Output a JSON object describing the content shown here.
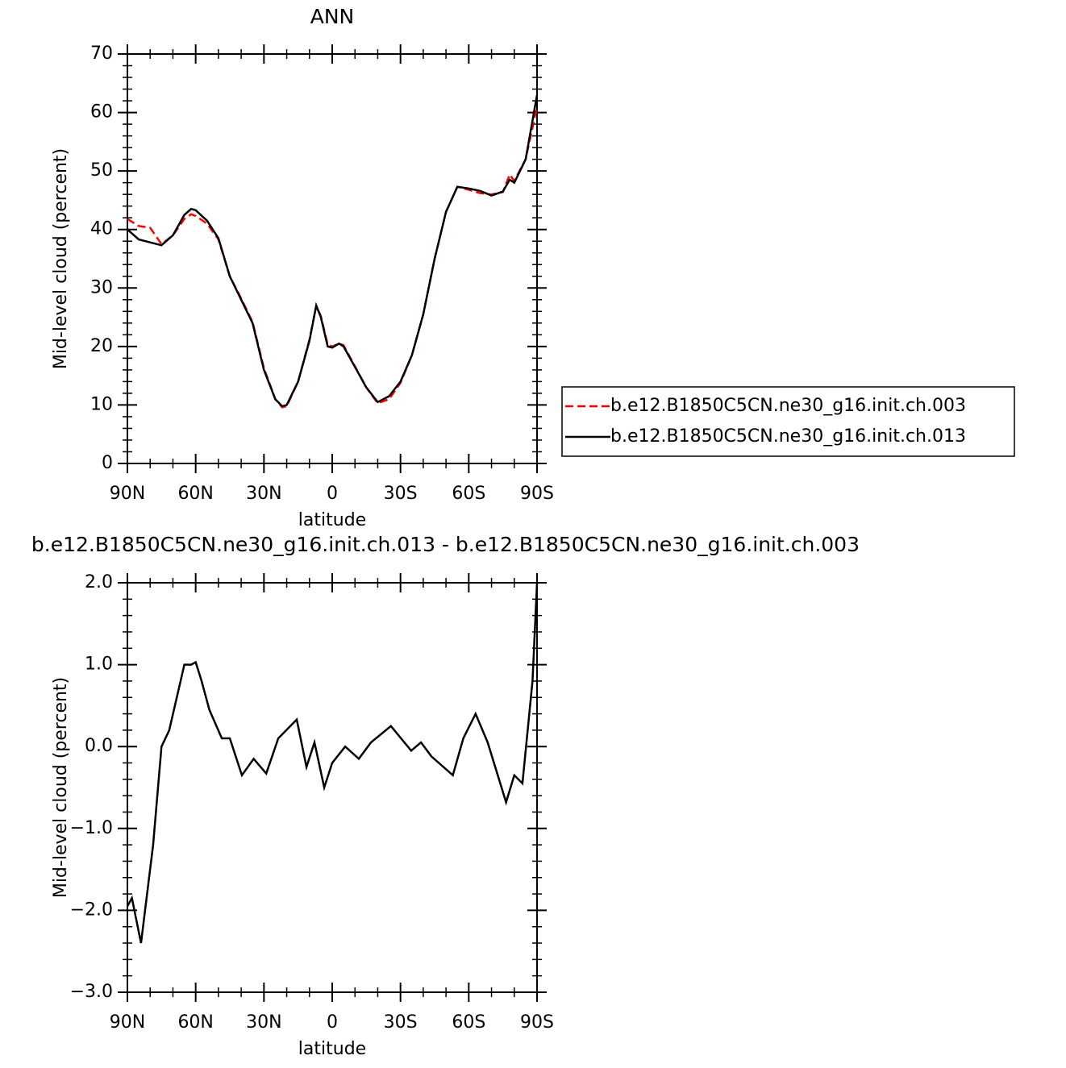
{
  "chart_data": [
    {
      "type": "line",
      "title": "ANN",
      "xlabel": "latitude",
      "ylabel": "Mid-level cloud (percent)",
      "xlim": [
        90,
        -90
      ],
      "ylim": [
        0,
        70
      ],
      "xticks": [
        {
          "value": 90,
          "label": "90N"
        },
        {
          "value": 60,
          "label": "60N"
        },
        {
          "value": 30,
          "label": "30N"
        },
        0,
        {
          "value": -30,
          "label": "30S"
        },
        {
          "value": -60,
          "label": "60S"
        },
        {
          "value": -90,
          "label": "90S"
        }
      ],
      "yticks": [
        0,
        10,
        20,
        30,
        40,
        50,
        60,
        70
      ],
      "legend": "right",
      "x": [
        90,
        85,
        80,
        75,
        70,
        65,
        62,
        60,
        55,
        50,
        45,
        40,
        35,
        30,
        25,
        22,
        20,
        15,
        10,
        7,
        5,
        2,
        0,
        -3,
        -5,
        -10,
        -15,
        -20,
        -25,
        -30,
        -35,
        -40,
        -45,
        -50,
        -55,
        -60,
        -65,
        -70,
        -75,
        -78,
        -80,
        -85,
        -90
      ],
      "series": [
        {
          "name": "b.e12.B1850C5CN.ne30_g16.init.ch.003",
          "color": "#ff0000",
          "dashed": true,
          "values": [
            41.8,
            40.6,
            40.3,
            37.5,
            39,
            41.8,
            42.6,
            42.3,
            41,
            38.3,
            32,
            28.2,
            24.2,
            16.3,
            11,
            9.6,
            9.8,
            14,
            21.2,
            27,
            25.2,
            20.3,
            20,
            20.5,
            20.2,
            16.6,
            13,
            10.3,
            11,
            13.8,
            18.5,
            25.5,
            35,
            43,
            47.3,
            46.8,
            46.2,
            46,
            46.4,
            49.4,
            48.3,
            52,
            61
          ]
        },
        {
          "name": "b.e12.B1850C5CN.ne30_g16.init.ch.013",
          "color": "#000000",
          "dashed": false,
          "values": [
            40,
            38.3,
            37.8,
            37.3,
            39,
            42.5,
            43.5,
            43.3,
            41.5,
            38.5,
            32,
            28,
            24,
            16,
            11,
            9.8,
            10,
            14,
            21,
            27,
            25,
            20,
            19.8,
            20.5,
            20,
            16.5,
            13,
            10.5,
            11.5,
            14,
            18.5,
            25.5,
            35,
            43,
            47.3,
            47,
            46.6,
            45.8,
            46.5,
            48.5,
            48,
            52,
            63
          ]
        }
      ]
    },
    {
      "type": "line",
      "title": "b.e12.B1850C5CN.ne30_g16.init.ch.013 - b.e12.B1850C5CN.ne30_g16.init.ch.003",
      "xlabel": "latitude",
      "ylabel": "Mid-level cloud (percent)",
      "xlim": [
        90,
        -90
      ],
      "ylim": [
        -3,
        2
      ],
      "xticks": [
        {
          "value": 90,
          "label": "90N"
        },
        {
          "value": 60,
          "label": "60N"
        },
        {
          "value": 30,
          "label": "30N"
        },
        0,
        {
          "value": -30,
          "label": "30S"
        },
        {
          "value": -60,
          "label": "60S"
        },
        {
          "value": -90,
          "label": "90S"
        }
      ],
      "yticks": [
        {
          "value": -3,
          "label": "−3.0"
        },
        {
          "value": -2,
          "label": "−2.0"
        },
        {
          "value": -1,
          "label": "−1.0"
        },
        {
          "value": 0,
          "label": "0.0"
        },
        {
          "value": 1,
          "label": "1.0"
        },
        {
          "value": 2,
          "label": "2.0"
        }
      ],
      "x": [
        90,
        88,
        84,
        78.7,
        75,
        71.6,
        65,
        62,
        60,
        57.4,
        54,
        48.5,
        45,
        39.7,
        34.5,
        29,
        23.7,
        15.6,
        11.3,
        7.8,
        3.5,
        0,
        -5.7,
        -11.7,
        -17,
        -25.8,
        -34.7,
        -39,
        -43.6,
        -53,
        -57.6,
        -63,
        -68.3,
        -76.4,
        -80,
        -83.6,
        -88,
        -90
      ],
      "series": [
        {
          "color": "#000000",
          "dashed": false,
          "values": [
            -1.95,
            -1.85,
            -2.4,
            -1.2,
            0,
            0.2,
            1.0,
            1.0,
            1.03,
            0.8,
            0.45,
            0.1,
            0.1,
            -0.35,
            -0.15,
            -0.33,
            0.1,
            0.33,
            -0.25,
            0.05,
            -0.5,
            -0.2,
            0,
            -0.15,
            0.05,
            0.25,
            -0.05,
            0.05,
            -0.12,
            -0.35,
            0.1,
            0.4,
            0.05,
            -0.68,
            -0.35,
            -0.45,
            0.8,
            2.0
          ]
        }
      ]
    }
  ]
}
